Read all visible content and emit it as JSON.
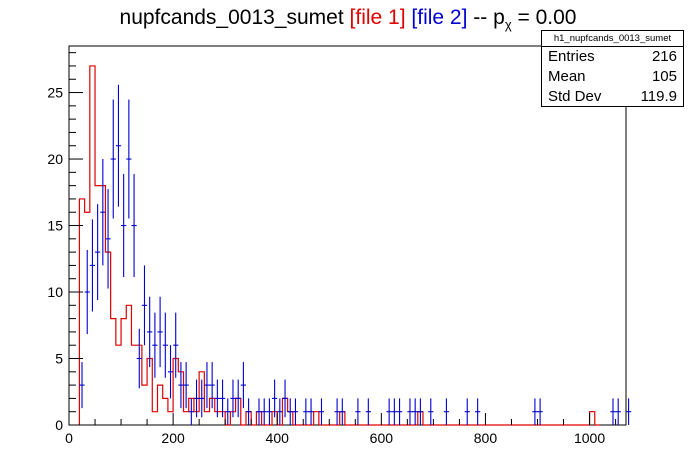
{
  "title": {
    "main": "nupfcands_0013_sumet",
    "file1": "[file 1]",
    "file2": "[file 2]",
    "sep": "--",
    "p": "p",
    "sub": "χ",
    "value": "= 0.00"
  },
  "stats": {
    "name": "h1_nupfcands_0013_sumet",
    "rows": [
      {
        "label": "Entries",
        "value": "216"
      },
      {
        "label": "Mean",
        "value": "105"
      },
      {
        "label": "Std Dev",
        "value": "119.9"
      }
    ]
  },
  "chart_data": {
    "type": "histogram",
    "xlim": [
      0,
      1070
    ],
    "ylim": [
      0,
      28.5
    ],
    "bin_width": 10,
    "xticks": [
      0,
      200,
      400,
      600,
      800,
      1000
    ],
    "yticks": [
      0,
      5,
      10,
      15,
      20,
      25
    ],
    "colors": {
      "file1": "#e00000",
      "file2": "#0000d0"
    },
    "file1_bins": [
      [
        20,
        17
      ],
      [
        30,
        16
      ],
      [
        40,
        27
      ],
      [
        50,
        18
      ],
      [
        60,
        18
      ],
      [
        70,
        13
      ],
      [
        80,
        8
      ],
      [
        90,
        6
      ],
      [
        100,
        8
      ],
      [
        110,
        9
      ],
      [
        120,
        6
      ],
      [
        130,
        6
      ],
      [
        140,
        3
      ],
      [
        150,
        5
      ],
      [
        160,
        1
      ],
      [
        170,
        3
      ],
      [
        180,
        2
      ],
      [
        190,
        1
      ],
      [
        200,
        5
      ],
      [
        210,
        4
      ],
      [
        220,
        1
      ],
      [
        230,
        2
      ],
      [
        240,
        1
      ],
      [
        250,
        4
      ],
      [
        260,
        1
      ],
      [
        270,
        2
      ],
      [
        280,
        1
      ],
      [
        290,
        1
      ],
      [
        300,
        0
      ],
      [
        310,
        1
      ],
      [
        320,
        2
      ],
      [
        330,
        0
      ],
      [
        340,
        1
      ],
      [
        350,
        0
      ],
      [
        360,
        1
      ],
      [
        370,
        0
      ],
      [
        380,
        0
      ],
      [
        390,
        1
      ],
      [
        400,
        0
      ],
      [
        410,
        2
      ],
      [
        420,
        1
      ],
      [
        430,
        0
      ],
      [
        440,
        0
      ],
      [
        450,
        0
      ],
      [
        460,
        0
      ],
      [
        470,
        1
      ],
      [
        480,
        0
      ],
      [
        490,
        0
      ],
      [
        500,
        0
      ],
      [
        510,
        0
      ],
      [
        520,
        1
      ],
      [
        530,
        0
      ],
      [
        540,
        0
      ],
      [
        550,
        0
      ],
      [
        560,
        0
      ],
      [
        570,
        0
      ],
      [
        580,
        0
      ],
      [
        590,
        0
      ],
      [
        600,
        0
      ],
      [
        610,
        0
      ],
      [
        620,
        0
      ],
      [
        630,
        0
      ],
      [
        640,
        0
      ],
      [
        650,
        0
      ],
      [
        660,
        0
      ],
      [
        670,
        1
      ],
      [
        680,
        0
      ],
      [
        690,
        0
      ],
      [
        700,
        0
      ],
      [
        710,
        0
      ],
      [
        720,
        0
      ],
      [
        730,
        0
      ],
      [
        740,
        0
      ],
      [
        750,
        0
      ],
      [
        760,
        0
      ],
      [
        770,
        0
      ],
      [
        780,
        0
      ],
      [
        790,
        0
      ],
      [
        800,
        0
      ],
      [
        810,
        0
      ],
      [
        820,
        0
      ],
      [
        830,
        0
      ],
      [
        840,
        0
      ],
      [
        850,
        0
      ],
      [
        860,
        0
      ],
      [
        870,
        0
      ],
      [
        880,
        0
      ],
      [
        890,
        0
      ],
      [
        900,
        0
      ],
      [
        910,
        0
      ],
      [
        920,
        0
      ],
      [
        930,
        0
      ],
      [
        940,
        0
      ],
      [
        950,
        0
      ],
      [
        960,
        0
      ],
      [
        970,
        0
      ],
      [
        980,
        0
      ],
      [
        990,
        0
      ],
      [
        1000,
        1
      ],
      [
        1010,
        0
      ]
    ],
    "file2_points": [
      [
        25,
        3
      ],
      [
        35,
        10
      ],
      [
        45,
        12
      ],
      [
        55,
        13
      ],
      [
        65,
        16
      ],
      [
        75,
        14
      ],
      [
        85,
        20
      ],
      [
        95,
        21
      ],
      [
        105,
        15
      ],
      [
        115,
        20
      ],
      [
        125,
        15
      ],
      [
        135,
        5
      ],
      [
        145,
        9
      ],
      [
        155,
        7
      ],
      [
        165,
        6
      ],
      [
        175,
        7
      ],
      [
        185,
        6
      ],
      [
        195,
        4
      ],
      [
        205,
        6
      ],
      [
        215,
        3
      ],
      [
        225,
        3
      ],
      [
        235,
        1
      ],
      [
        245,
        2
      ],
      [
        255,
        2
      ],
      [
        265,
        3
      ],
      [
        275,
        3
      ],
      [
        285,
        2
      ],
      [
        295,
        2
      ],
      [
        305,
        1
      ],
      [
        315,
        2
      ],
      [
        325,
        2
      ],
      [
        335,
        3
      ],
      [
        345,
        1
      ],
      [
        365,
        1
      ],
      [
        375,
        1
      ],
      [
        385,
        1
      ],
      [
        395,
        2
      ],
      [
        405,
        1
      ],
      [
        415,
        2
      ],
      [
        425,
        1
      ],
      [
        435,
        1
      ],
      [
        455,
        1
      ],
      [
        465,
        1
      ],
      [
        485,
        1
      ],
      [
        515,
        1
      ],
      [
        525,
        1
      ],
      [
        555,
        1
      ],
      [
        575,
        1
      ],
      [
        615,
        1
      ],
      [
        625,
        1
      ],
      [
        635,
        1
      ],
      [
        655,
        1
      ],
      [
        665,
        1
      ],
      [
        675,
        1
      ],
      [
        695,
        1
      ],
      [
        725,
        1
      ],
      [
        765,
        1
      ],
      [
        785,
        1
      ],
      [
        895,
        1
      ],
      [
        905,
        1
      ],
      [
        1045,
        1
      ],
      [
        1055,
        1
      ],
      [
        1075,
        1
      ]
    ]
  }
}
